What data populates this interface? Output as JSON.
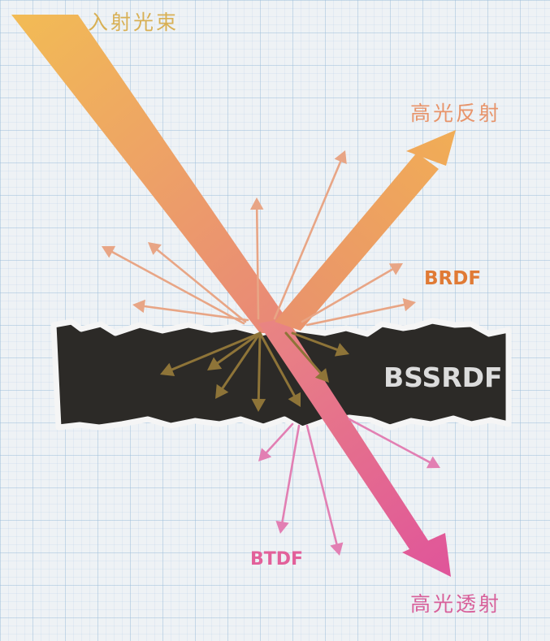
{
  "labels": {
    "incident": "入射光束",
    "specular_reflection": "高光反射",
    "specular_transmission": "高光透射",
    "brdf": "BRDF",
    "bssrdf": "BSSRDF",
    "btdf": "BTDF"
  },
  "colors": {
    "incident_start": "#f2bb55",
    "incident_end": "#e98a76",
    "reflect_start": "#e9936c",
    "reflect_end": "#f1ad56",
    "transmit_start": "#e98582",
    "transmit_end": "#e0559a",
    "brdf_arrows": "#e8a585",
    "bssrdf_arrows": "#8e7438",
    "btdf_arrows": "#e27fb3",
    "slab": "#2c2a27",
    "slab_edge": "#f5f5f5",
    "label_incident": "#d8b055",
    "label_reflect": "#e8946a",
    "label_transmit": "#d8609a",
    "label_brdf": "#e07a35",
    "label_bssrdf": "#dcdcdc",
    "label_btdf": "#e2609a"
  }
}
